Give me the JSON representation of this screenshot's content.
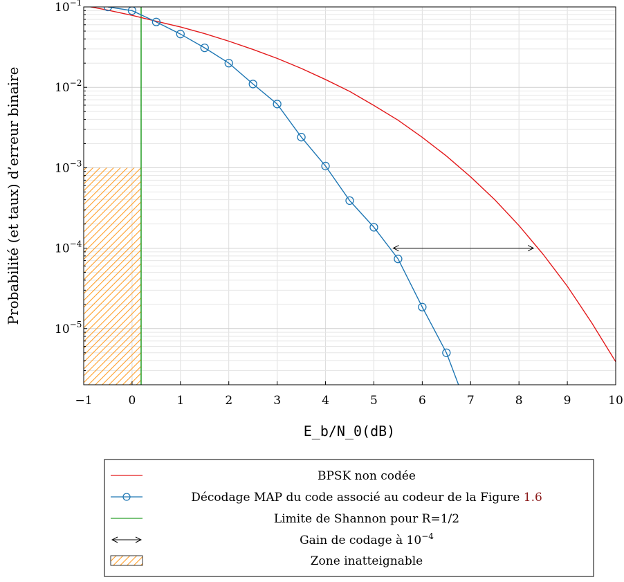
{
  "chart_data": {
    "type": "line",
    "title": "",
    "xlabel": "E_b/N_0(dB)",
    "ylabel": "Probabilité (et taux) d’erreur binaire",
    "x_scale": "linear",
    "y_scale": "log",
    "xlim": [
      -1,
      10
    ],
    "ylim": [
      2e-06,
      0.1
    ],
    "grid": true,
    "legend_position": "below",
    "x_ticks": [
      -1,
      0,
      1,
      2,
      3,
      4,
      5,
      6,
      7,
      8,
      9,
      10
    ],
    "x_tick_labels": [
      "−1",
      "0",
      "1",
      "2",
      "3",
      "4",
      "5",
      "6",
      "7",
      "8",
      "9",
      "10"
    ],
    "y_ticks": [
      {
        "value": 0.1,
        "base": "10",
        "exp": "−1"
      },
      {
        "value": 0.01,
        "base": "10",
        "exp": "−2"
      },
      {
        "value": 0.001,
        "base": "10",
        "exp": "−3"
      },
      {
        "value": 0.0001,
        "base": "10",
        "exp": "−4"
      },
      {
        "value": 1e-05,
        "base": "10",
        "exp": "−5"
      }
    ],
    "series": [
      {
        "name": "BPSK non codée",
        "color": "#e31a1c",
        "marker": "none",
        "x": [
          -1,
          -0.5,
          0,
          0.5,
          1,
          1.5,
          2,
          2.5,
          3,
          3.5,
          4,
          4.5,
          5,
          5.5,
          6,
          6.5,
          7,
          7.5,
          8,
          8.5,
          9,
          9.5,
          10
        ],
        "y": [
          0.104,
          0.0912,
          0.0786,
          0.0664,
          0.0563,
          0.0466,
          0.0375,
          0.0296,
          0.0229,
          0.0172,
          0.0125,
          0.0089,
          0.00595,
          0.0039,
          0.00239,
          0.0014,
          0.00077,
          0.0004,
          0.000191,
          8.38e-05,
          3.36e-05,
          1.19e-05,
          3.87e-06
        ]
      },
      {
        "name": "Décodage MAP du code associé au codeur de la Figure 1.6",
        "color": "#1f77b4",
        "marker": "circle",
        "x": [
          -0.5,
          0,
          0.5,
          1,
          1.5,
          2,
          2.5,
          3,
          3.5,
          4,
          4.5,
          5,
          5.5,
          6,
          6.5,
          6.75
        ],
        "y": [
          0.1,
          0.09,
          0.065,
          0.046,
          0.031,
          0.02,
          0.011,
          0.0062,
          0.0024,
          0.00105,
          0.00039,
          0.000182,
          7.35e-05,
          1.85e-05,
          5e-06,
          2e-06
        ]
      }
    ],
    "shannon_limit": {
      "name": "Limite de Shannon pour R=1/2",
      "color": "#2ca02c",
      "x": 0.187
    },
    "unreachable_zone": {
      "name": "Zone inatteignable",
      "color": "#ff9f2a",
      "x_range": [
        -1,
        0.187
      ],
      "y_max": 0.001
    },
    "coding_gain": {
      "name": "Gain de codage à 10^−4",
      "y": 0.0001,
      "x_from": 5.4,
      "x_to": 8.3
    }
  },
  "legend": {
    "items": [
      {
        "id": "bpsk",
        "label": "BPSK non codée"
      },
      {
        "id": "map",
        "label_main": "Décodage MAP du code associé au codeur de la Figure ",
        "label_ref": "1.6",
        "ref_color": "#8b1a1a"
      },
      {
        "id": "shannon",
        "label": "Limite de Shannon pour R=1/2"
      },
      {
        "id": "gain",
        "label_main": "Gain de codage à 10",
        "label_sup": "−4"
      },
      {
        "id": "zone",
        "label": "Zone inatteignable"
      }
    ]
  }
}
